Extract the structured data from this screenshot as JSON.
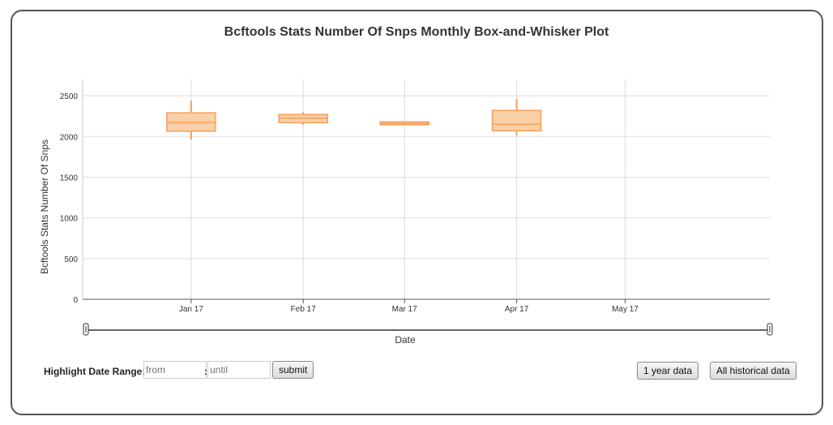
{
  "chart_data": {
    "type": "box",
    "title": "Bcftools Stats Number Of Snps Monthly Box-and-Whisker Plot",
    "xlabel": "Date",
    "ylabel": "Bcftools Stats Number Of Snps",
    "ylim": [
      0,
      2700
    ],
    "yticks": [
      0,
      500,
      1000,
      1500,
      2000,
      2500
    ],
    "xrange": [
      "2016-12-02",
      "2017-06-10"
    ],
    "xticks": [
      {
        "date": "2017-01-01",
        "label": "Jan 17"
      },
      {
        "date": "2017-02-01",
        "label": "Feb 17"
      },
      {
        "date": "2017-03-01",
        "label": "Mar 17"
      },
      {
        "date": "2017-04-01",
        "label": "Apr 17"
      },
      {
        "date": "2017-05-01",
        "label": "May 17"
      }
    ],
    "boxes": [
      {
        "date": "2017-01-01",
        "min": 1960,
        "q1": 2065,
        "median": 2170,
        "q3": 2290,
        "max": 2440
      },
      {
        "date": "2017-02-01",
        "min": 2140,
        "q1": 2170,
        "median": 2225,
        "q3": 2270,
        "max": 2300
      },
      {
        "date": "2017-03-01",
        "min": 2140,
        "q1": 2145,
        "median": 2160,
        "q3": 2180,
        "max": 2185
      },
      {
        "date": "2017-04-01",
        "min": 2010,
        "q1": 2070,
        "median": 2150,
        "q3": 2320,
        "max": 2460
      }
    ],
    "colors": {
      "box_fill": "#fbd0a8",
      "box_stroke": "#f5a05a",
      "grid": "#dddddd",
      "axis": "#555555"
    },
    "grid": true,
    "legend": "none"
  },
  "controls": {
    "highlight_label": "Highlight Date Range:",
    "from_placeholder": "from",
    "until_placeholder": "until",
    "colon": ":",
    "submit_label": "submit",
    "one_year_label": "1 year data",
    "all_history_label": "All historical data"
  }
}
